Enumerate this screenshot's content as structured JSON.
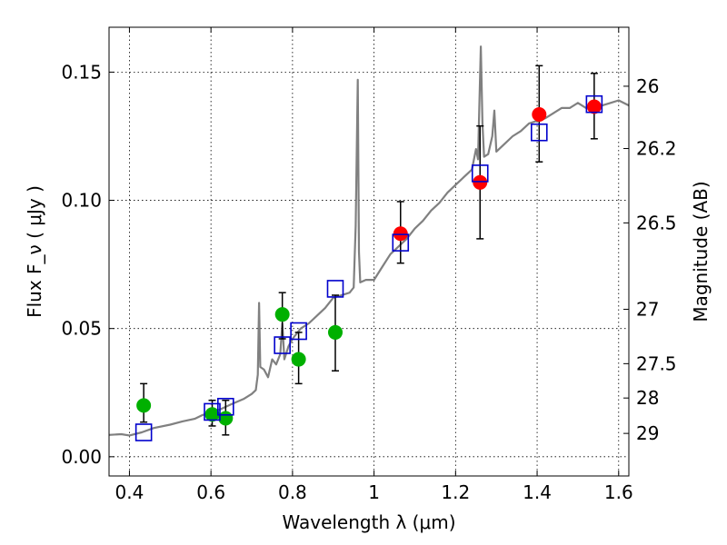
{
  "chart_data": {
    "type": "scatter",
    "xlabel": "Wavelength  λ (μm)",
    "ylabel": "Flux  F_ν  ( μJy )",
    "y2label": "Magnitude (AB)",
    "xlim": [
      0.35,
      1.625
    ],
    "ylim": [
      -0.0075,
      0.1675
    ],
    "x_ticks": [
      0.4,
      0.6,
      0.8,
      1.0,
      1.2,
      1.4,
      1.6
    ],
    "x_tick_labels": [
      "0.4",
      "0.6",
      "0.8",
      "1",
      "1.2",
      "1.4",
      "1.6"
    ],
    "y_ticks": [
      0.0,
      0.05,
      0.1,
      0.15
    ],
    "y_tick_labels": [
      "0.00",
      "0.05",
      "0.10",
      "0.15"
    ],
    "y2_ticks": [
      {
        "label": "26",
        "flux": 0.1445
      },
      {
        "label": "26.2",
        "flux": 0.1202
      },
      {
        "label": "26.5",
        "flux": 0.0912
      },
      {
        "label": "27",
        "flux": 0.0575
      },
      {
        "label": "27.5",
        "flux": 0.0363
      },
      {
        "label": "28",
        "flux": 0.0229
      },
      {
        "label": "29",
        "flux": 0.0091
      }
    ],
    "grid": true,
    "colors": {
      "model": "#808080",
      "green": "#00b000",
      "red": "#ff0000",
      "box": "#0000cc",
      "errorbar": "#000000"
    },
    "model_spectrum": [
      [
        0.35,
        0.0085
      ],
      [
        0.38,
        0.0088
      ],
      [
        0.4,
        0.0083
      ],
      [
        0.43,
        0.0095
      ],
      [
        0.46,
        0.0112
      ],
      [
        0.5,
        0.0125
      ],
      [
        0.53,
        0.0138
      ],
      [
        0.56,
        0.0148
      ],
      [
        0.58,
        0.0163
      ],
      [
        0.6,
        0.0172
      ],
      [
        0.62,
        0.0183
      ],
      [
        0.65,
        0.0205
      ],
      [
        0.68,
        0.0225
      ],
      [
        0.7,
        0.0245
      ],
      [
        0.71,
        0.026
      ],
      [
        0.715,
        0.032
      ],
      [
        0.718,
        0.06
      ],
      [
        0.721,
        0.035
      ],
      [
        0.73,
        0.034
      ],
      [
        0.74,
        0.031
      ],
      [
        0.75,
        0.038
      ],
      [
        0.76,
        0.036
      ],
      [
        0.77,
        0.04
      ],
      [
        0.775,
        0.052
      ],
      [
        0.78,
        0.038
      ],
      [
        0.79,
        0.043
      ],
      [
        0.8,
        0.046
      ],
      [
        0.82,
        0.05
      ],
      [
        0.84,
        0.052
      ],
      [
        0.86,
        0.055
      ],
      [
        0.88,
        0.058
      ],
      [
        0.9,
        0.062
      ],
      [
        0.92,
        0.063
      ],
      [
        0.94,
        0.064
      ],
      [
        0.95,
        0.066
      ],
      [
        0.955,
        0.09
      ],
      [
        0.96,
        0.147
      ],
      [
        0.963,
        0.08
      ],
      [
        0.966,
        0.068
      ],
      [
        0.98,
        0.069
      ],
      [
        1.0,
        0.069
      ],
      [
        1.02,
        0.074
      ],
      [
        1.04,
        0.079
      ],
      [
        1.06,
        0.082
      ],
      [
        1.08,
        0.085
      ],
      [
        1.1,
        0.089
      ],
      [
        1.12,
        0.092
      ],
      [
        1.14,
        0.096
      ],
      [
        1.16,
        0.099
      ],
      [
        1.18,
        0.103
      ],
      [
        1.2,
        0.106
      ],
      [
        1.22,
        0.109
      ],
      [
        1.24,
        0.112
      ],
      [
        1.25,
        0.12
      ],
      [
        1.255,
        0.116
      ],
      [
        1.262,
        0.16
      ],
      [
        1.266,
        0.13
      ],
      [
        1.27,
        0.117
      ],
      [
        1.28,
        0.118
      ],
      [
        1.29,
        0.125
      ],
      [
        1.295,
        0.135
      ],
      [
        1.3,
        0.119
      ],
      [
        1.32,
        0.122
      ],
      [
        1.34,
        0.125
      ],
      [
        1.36,
        0.127
      ],
      [
        1.38,
        0.13
      ],
      [
        1.4,
        0.131
      ],
      [
        1.42,
        0.132
      ],
      [
        1.44,
        0.134
      ],
      [
        1.46,
        0.136
      ],
      [
        1.48,
        0.136
      ],
      [
        1.5,
        0.138
      ],
      [
        1.52,
        0.136
      ],
      [
        1.54,
        0.138
      ],
      [
        1.56,
        0.137
      ],
      [
        1.58,
        0.138
      ],
      [
        1.6,
        0.139
      ],
      [
        1.625,
        0.137
      ]
    ],
    "model_boxes": [
      [
        0.435,
        0.0095
      ],
      [
        0.603,
        0.0175
      ],
      [
        0.636,
        0.0195
      ],
      [
        0.775,
        0.0435
      ],
      [
        0.815,
        0.049
      ],
      [
        0.905,
        0.0655
      ],
      [
        1.065,
        0.0835
      ],
      [
        1.26,
        0.1105
      ],
      [
        1.405,
        0.1265
      ],
      [
        1.54,
        0.1375
      ]
    ],
    "observed_green": [
      {
        "x": 0.435,
        "y": 0.02,
        "err_low": 0.0065,
        "err_high": 0.0085
      },
      {
        "x": 0.603,
        "y": 0.0165,
        "err_low": 0.0045,
        "err_high": 0.0055
      },
      {
        "x": 0.636,
        "y": 0.015,
        "err_low": 0.0065,
        "err_high": 0.007
      },
      {
        "x": 0.775,
        "y": 0.0555,
        "err_low": 0.0095,
        "err_high": 0.0085
      },
      {
        "x": 0.815,
        "y": 0.038,
        "err_low": 0.0095,
        "err_high": 0.0105
      },
      {
        "x": 0.905,
        "y": 0.0485,
        "err_low": 0.015,
        "err_high": 0.0145
      }
    ],
    "observed_red": [
      {
        "x": 1.065,
        "y": 0.087,
        "err_low": 0.0115,
        "err_high": 0.0125
      },
      {
        "x": 1.26,
        "y": 0.107,
        "err_low": 0.022,
        "err_high": 0.022
      },
      {
        "x": 1.405,
        "y": 0.1335,
        "err_low": 0.0185,
        "err_high": 0.019
      },
      {
        "x": 1.54,
        "y": 0.1365,
        "err_low": 0.0125,
        "err_high": 0.013
      }
    ]
  }
}
